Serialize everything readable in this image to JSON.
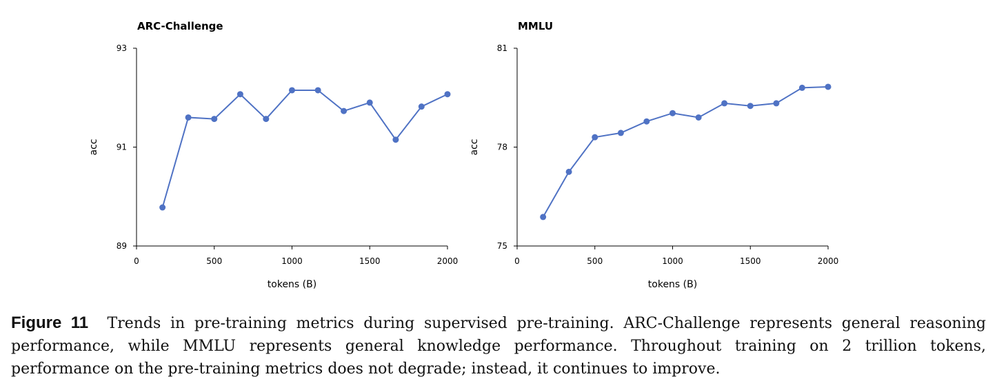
{
  "chart_data": [
    {
      "type": "line",
      "title": "ARC-Challenge",
      "xlabel": "tokens (B)",
      "ylabel": "acc",
      "xlim": [
        0,
        2000
      ],
      "ylim": [
        89,
        93
      ],
      "xticks": [
        0,
        500,
        1000,
        1500,
        2000
      ],
      "yticks": [
        89,
        91,
        93
      ],
      "color": "#4f72c4",
      "grid": false,
      "x": [
        167,
        333,
        500,
        667,
        833,
        1000,
        1167,
        1333,
        1500,
        1667,
        1833,
        2000
      ],
      "values": [
        89.78,
        91.6,
        91.57,
        92.07,
        91.57,
        92.15,
        92.15,
        91.73,
        91.9,
        91.15,
        91.82,
        92.07
      ]
    },
    {
      "type": "line",
      "title": "MMLU",
      "xlabel": "tokens (B)",
      "ylabel": "acc",
      "xlim": [
        0,
        2000
      ],
      "ylim": [
        75,
        81
      ],
      "xticks": [
        0,
        500,
        1000,
        1500,
        2000
      ],
      "yticks": [
        75,
        78,
        81
      ],
      "color": "#4f72c4",
      "grid": false,
      "x": [
        167,
        333,
        500,
        667,
        833,
        1000,
        1167,
        1333,
        1500,
        1667,
        1833,
        2000
      ],
      "values": [
        75.88,
        77.25,
        78.3,
        78.43,
        78.78,
        79.03,
        78.9,
        79.33,
        79.25,
        79.33,
        79.8,
        79.83
      ]
    }
  ],
  "caption": {
    "label": "Figure 11",
    "text": "Trends in pre-training metrics during supervised pre-training. ARC-Challenge represents general reasoning performance, while MMLU represents general knowledge performance. Throughout training on 2 trillion tokens, performance on the pre-training metrics does not degrade; instead, it continues to improve."
  }
}
